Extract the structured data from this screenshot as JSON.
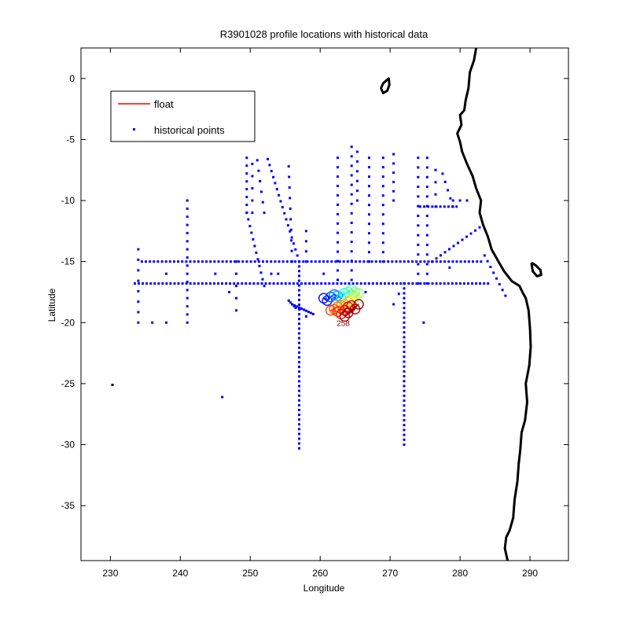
{
  "chart_data": {
    "type": "scatter",
    "title": "R3901028 profile locations with historical data",
    "xlabel": "Longitude",
    "ylabel": "Latitude",
    "xlim": [
      225.8,
      295.5
    ],
    "ylim": [
      -39.5,
      2.5
    ],
    "xticks": [
      230,
      240,
      250,
      260,
      270,
      280,
      290
    ],
    "yticks": [
      0,
      -5,
      -10,
      -15,
      -20,
      -25,
      -30,
      -35
    ],
    "grid": false,
    "legend": {
      "placement": "top-left",
      "entries": [
        {
          "label": "float",
          "marker": "line",
          "color": "#ff0000"
        },
        {
          "label": "historical points",
          "marker": "dot",
          "color": "#0000ff"
        }
      ]
    },
    "colors": {
      "historical": "#0000ff",
      "float": "#ff0000",
      "coast": "#000000"
    },
    "historical_lines": [
      {
        "x0": 233.5,
        "y0": -16.8,
        "x1": 284.0,
        "y1": -16.8,
        "n": 90
      },
      {
        "x0": 234.5,
        "y0": -15.0,
        "x1": 283.0,
        "y1": -15.0,
        "n": 85
      },
      {
        "x0": 257.0,
        "y0": -15.0,
        "x1": 257.0,
        "y1": -30.3,
        "n": 40
      },
      {
        "x0": 272.0,
        "y0": -16.8,
        "x1": 272.0,
        "y1": -30.0,
        "n": 34
      },
      {
        "x0": 241.0,
        "y0": -10.0,
        "x1": 241.0,
        "y1": -20.0,
        "n": 16
      },
      {
        "x0": 234.0,
        "y0": -14.0,
        "x1": 234.0,
        "y1": -20.0,
        "n": 8
      },
      {
        "x0": 248.0,
        "y0": -15.0,
        "x1": 248.0,
        "y1": -19.0,
        "n": 5
      },
      {
        "x0": 252.5,
        "y0": -6.6,
        "x1": 257.0,
        "y1": -15.0,
        "n": 18
      },
      {
        "x0": 255.5,
        "y0": -7.2,
        "x1": 256.0,
        "y1": -15.0,
        "n": 10
      },
      {
        "x0": 249.5,
        "y0": -6.5,
        "x1": 249.5,
        "y1": -11.0,
        "n": 8
      },
      {
        "x0": 249.5,
        "y0": -11.0,
        "x1": 252.0,
        "y1": -17.0,
        "n": 12
      },
      {
        "x0": 251.0,
        "y0": -6.7,
        "x1": 252.0,
        "y1": -11.0,
        "n": 6
      },
      {
        "x0": 250.3,
        "y0": -7.0,
        "x1": 250.3,
        "y1": -11.0,
        "n": 5
      },
      {
        "x0": 258.0,
        "y0": -12.5,
        "x1": 258.0,
        "y1": -15.0,
        "n": 4
      },
      {
        "x0": 262.5,
        "y0": -6.5,
        "x1": 262.5,
        "y1": -16.5,
        "n": 14
      },
      {
        "x0": 264.5,
        "y0": -5.6,
        "x1": 264.5,
        "y1": -16.5,
        "n": 15
      },
      {
        "x0": 265.3,
        "y0": -6.0,
        "x1": 265.3,
        "y1": -10.0,
        "n": 6
      },
      {
        "x0": 267.0,
        "y0": -6.5,
        "x1": 267.0,
        "y1": -15.0,
        "n": 12
      },
      {
        "x0": 269.0,
        "y0": -6.5,
        "x1": 269.0,
        "y1": -15.0,
        "n": 12
      },
      {
        "x0": 270.5,
        "y0": -6.2,
        "x1": 270.5,
        "y1": -10.0,
        "n": 6
      },
      {
        "x0": 274.0,
        "y0": -6.5,
        "x1": 274.0,
        "y1": -16.8,
        "n": 14
      },
      {
        "x0": 275.3,
        "y0": -6.5,
        "x1": 275.3,
        "y1": -16.8,
        "n": 14
      },
      {
        "x0": 274.3,
        "y0": -10.5,
        "x1": 279.5,
        "y1": -10.5,
        "n": 10
      },
      {
        "x0": 276.5,
        "y0": -7.5,
        "x1": 276.5,
        "y1": -10.5,
        "n": 4
      },
      {
        "x0": 277.5,
        "y0": -7.8,
        "x1": 279.0,
        "y1": -10.5,
        "n": 5
      },
      {
        "x0": 279.0,
        "y0": -10.0,
        "x1": 281.0,
        "y1": -10.0,
        "n": 3
      },
      {
        "x0": 276.0,
        "y0": -15.0,
        "x1": 282.8,
        "y1": -12.2,
        "n": 12
      },
      {
        "x0": 272.0,
        "y0": -16.8,
        "x1": 270.5,
        "y1": -18.5,
        "n": 3
      },
      {
        "x0": 283.5,
        "y0": -14.5,
        "x1": 286.5,
        "y1": -17.8,
        "n": 8
      },
      {
        "x0": 255.5,
        "y0": -18.2,
        "x1": 256.5,
        "y1": -18.8,
        "n": 5
      },
      {
        "x0": 256.0,
        "y0": -18.5,
        "x1": 259.0,
        "y1": -19.3,
        "n": 10
      }
    ],
    "historical_points": [
      [
        236,
        -20
      ],
      [
        238,
        -20
      ],
      [
        245,
        -16
      ],
      [
        254,
        -16
      ],
      [
        262,
        -18
      ],
      [
        266.5,
        -17.5
      ],
      [
        274.8,
        -20
      ],
      [
        278.5,
        -15.5
      ],
      [
        246,
        -26.1
      ],
      [
        247,
        -17.5
      ],
      [
        258,
        -19.5
      ],
      [
        253,
        -16
      ],
      [
        260.5,
        -16
      ],
      [
        238,
        -16
      ]
    ],
    "outlier_points": [
      [
        230.3,
        -25.1
      ]
    ],
    "float_points": [
      [
        260.5,
        -18.0,
        0.05
      ],
      [
        261.0,
        -18.2,
        0.1
      ],
      [
        261.5,
        -17.9,
        0.15
      ],
      [
        262.0,
        -17.7,
        0.2
      ],
      [
        262.5,
        -17.8,
        0.25
      ],
      [
        263.0,
        -18.0,
        0.3
      ],
      [
        263.5,
        -17.6,
        0.35
      ],
      [
        264.0,
        -17.5,
        0.4
      ],
      [
        264.5,
        -17.3,
        0.45
      ],
      [
        265.0,
        -17.5,
        0.48
      ],
      [
        265.5,
        -17.6,
        0.5
      ],
      [
        265.0,
        -17.9,
        0.55
      ],
      [
        264.5,
        -18.2,
        0.6
      ],
      [
        264.0,
        -18.3,
        0.65
      ],
      [
        263.5,
        -18.5,
        0.68
      ],
      [
        263.0,
        -18.6,
        0.72
      ],
      [
        262.5,
        -18.7,
        0.75
      ],
      [
        262.0,
        -18.9,
        0.78
      ],
      [
        261.5,
        -19.0,
        0.8
      ],
      [
        262.5,
        -19.1,
        0.82
      ],
      [
        263.0,
        -19.3,
        0.85
      ],
      [
        263.5,
        -19.0,
        0.88
      ],
      [
        264.0,
        -18.7,
        0.9
      ],
      [
        264.5,
        -18.6,
        0.92
      ],
      [
        265.0,
        -18.9,
        0.94
      ],
      [
        263.5,
        -19.5,
        0.96
      ],
      [
        264.0,
        -19.2,
        0.98
      ],
      [
        265.5,
        -18.5,
        1.0
      ]
    ],
    "float_label": {
      "text": "258",
      "x": 263.3,
      "y": -20.0
    },
    "coastline": [
      [
        282.3,
        2.5
      ],
      [
        282.0,
        1.5
      ],
      [
        281.4,
        0.5
      ],
      [
        281.2,
        -0.8
      ],
      [
        280.8,
        -1.8
      ],
      [
        280.6,
        -2.6
      ],
      [
        280.0,
        -3.0
      ],
      [
        280.2,
        -3.8
      ],
      [
        279.6,
        -4.5
      ],
      [
        280.0,
        -5.2
      ],
      [
        280.3,
        -6.0
      ],
      [
        281.0,
        -7.0
      ],
      [
        281.8,
        -8.0
      ],
      [
        282.3,
        -9.0
      ],
      [
        283.0,
        -10.0
      ],
      [
        282.8,
        -11.0
      ],
      [
        283.3,
        -12.0
      ],
      [
        284.0,
        -13.0
      ],
      [
        284.5,
        -14.0
      ],
      [
        285.5,
        -15.0
      ],
      [
        286.3,
        -15.8
      ],
      [
        287.4,
        -16.6
      ],
      [
        288.5,
        -17.0
      ],
      [
        289.0,
        -17.6
      ],
      [
        289.4,
        -18.0
      ],
      [
        289.8,
        -19.0
      ],
      [
        290.0,
        -20.5
      ],
      [
        290.1,
        -22.0
      ],
      [
        289.9,
        -23.5
      ],
      [
        289.4,
        -25.0
      ],
      [
        289.6,
        -26.5
      ],
      [
        289.3,
        -28.0
      ],
      [
        288.8,
        -29.0
      ],
      [
        288.6,
        -30.5
      ],
      [
        288.4,
        -31.5
      ],
      [
        288.2,
        -33.0
      ],
      [
        287.8,
        -34.5
      ],
      [
        287.6,
        -36.0
      ],
      [
        287.1,
        -37.0
      ],
      [
        286.6,
        -37.6
      ],
      [
        286.4,
        -38.5
      ],
      [
        286.8,
        -39.5
      ]
    ],
    "island_lake": [
      [
        269.4,
        -0.2
      ],
      [
        269.8,
        0.0
      ],
      [
        269.9,
        -0.5
      ],
      [
        269.6,
        -1.0
      ],
      [
        269.0,
        -1.2
      ],
      [
        268.7,
        -0.8
      ],
      [
        269.0,
        -0.4
      ],
      [
        269.4,
        -0.2
      ]
    ],
    "island_lake2": [
      [
        290.2,
        -15.1
      ],
      [
        290.8,
        -15.3
      ],
      [
        291.5,
        -15.7
      ],
      [
        291.6,
        -16.1
      ],
      [
        291.0,
        -16.2
      ],
      [
        290.4,
        -15.8
      ],
      [
        290.2,
        -15.1
      ]
    ]
  }
}
